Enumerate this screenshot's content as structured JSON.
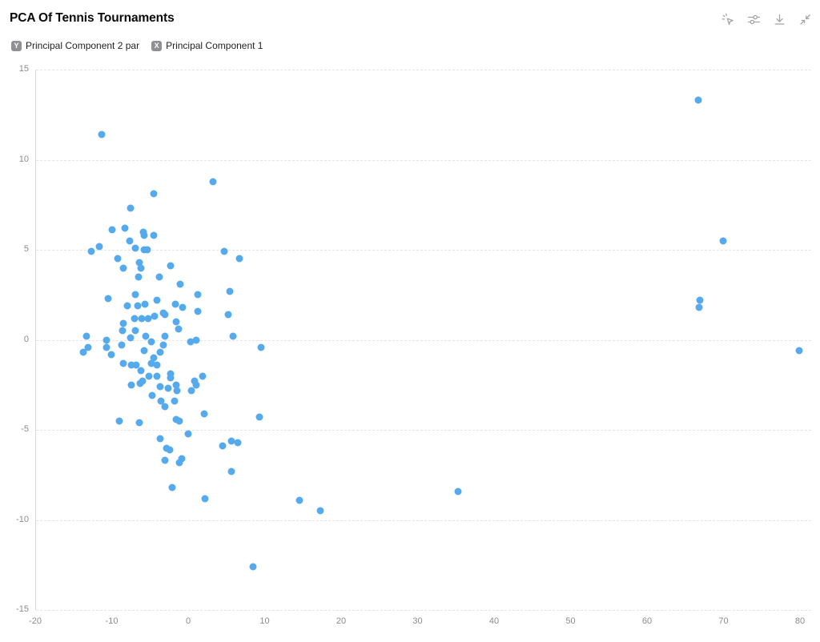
{
  "header": {
    "title": "PCA Of Tennis Tournaments"
  },
  "toolbar": {
    "icons": [
      {
        "name": "pointer-spark-icon"
      },
      {
        "name": "sliders-icon"
      },
      {
        "name": "download-icon"
      },
      {
        "name": "collapse-icon"
      }
    ]
  },
  "legend": {
    "y": {
      "badge": "Y",
      "label": "Principal Component 2 par"
    },
    "x": {
      "badge": "X",
      "label": "Principal Component 1"
    }
  },
  "colors": {
    "point": "#55a9ed",
    "grid": "#e4e4e6",
    "axis_line": "#d9d9db",
    "tick_text": "#8b8b90",
    "badge_bg": "#8f8f94"
  },
  "chart_data": {
    "type": "scatter",
    "title": "PCA Of Tennis Tournaments",
    "xlabel": "Principal Component 1",
    "ylabel": "Principal Component 2 par",
    "xlim": [
      -20,
      80
    ],
    "ylim": [
      -15,
      15
    ],
    "x_ticks": [
      -20,
      -10,
      0,
      10,
      20,
      30,
      40,
      50,
      60,
      70,
      80
    ],
    "y_ticks": [
      15,
      10,
      5,
      0,
      -5,
      -10,
      -15
    ],
    "grid": "horizontal-dashed",
    "legend_position": "none",
    "points": [
      [
        -11.4,
        11.4
      ],
      [
        3.1,
        8.8
      ],
      [
        -4.6,
        8.1
      ],
      [
        66.6,
        13.3
      ],
      [
        69.8,
        5.5
      ],
      [
        66.8,
        2.2
      ],
      [
        66.7,
        1.8
      ],
      [
        79.8,
        -0.6
      ],
      [
        35.2,
        -8.4
      ],
      [
        14.4,
        -8.9
      ],
      [
        17.2,
        -9.5
      ],
      [
        8.4,
        -12.6
      ],
      [
        9.4,
        -0.4
      ],
      [
        9.2,
        -4.3
      ],
      [
        -7.6,
        7.3
      ],
      [
        -10.1,
        6.1
      ],
      [
        -8.4,
        6.2
      ],
      [
        -6.0,
        6.0
      ],
      [
        -5.9,
        5.8
      ],
      [
        -4.6,
        5.8
      ],
      [
        -7.8,
        5.5
      ],
      [
        -11.7,
        5.2
      ],
      [
        -12.8,
        4.9
      ],
      [
        -7.0,
        5.1
      ],
      [
        -5.9,
        5.0
      ],
      [
        -5.4,
        5.0
      ],
      [
        -9.3,
        4.5
      ],
      [
        -8.6,
        4.0
      ],
      [
        -6.5,
        4.3
      ],
      [
        -6.3,
        4.0
      ],
      [
        -2.4,
        4.1
      ],
      [
        4.6,
        4.9
      ],
      [
        6.6,
        4.5
      ],
      [
        5.3,
        2.7
      ],
      [
        -6.6,
        3.5
      ],
      [
        -3.9,
        3.5
      ],
      [
        -1.2,
        3.1
      ],
      [
        -10.6,
        2.3
      ],
      [
        -7.0,
        2.5
      ],
      [
        -4.2,
        2.2
      ],
      [
        -8.1,
        1.9
      ],
      [
        -6.7,
        1.9
      ],
      [
        -5.8,
        2.0
      ],
      [
        -1.8,
        2.0
      ],
      [
        -0.8,
        1.8
      ],
      [
        1.2,
        2.5
      ],
      [
        1.2,
        1.6
      ],
      [
        -3.4,
        1.5
      ],
      [
        -3.1,
        1.4
      ],
      [
        -7.1,
        1.2
      ],
      [
        -6.2,
        1.2
      ],
      [
        -5.3,
        1.2
      ],
      [
        -4.5,
        1.3
      ],
      [
        -8.6,
        0.9
      ],
      [
        -1.7,
        1.0
      ],
      [
        -1.4,
        0.6
      ],
      [
        -8.7,
        0.5
      ],
      [
        -7.0,
        0.5
      ],
      [
        -7.6,
        0.1
      ],
      [
        -5.7,
        0.2
      ],
      [
        -3.1,
        0.2
      ],
      [
        -4.9,
        -0.1
      ],
      [
        -3.4,
        -0.3
      ],
      [
        -8.8,
        -0.3
      ],
      [
        -5.9,
        -0.6
      ],
      [
        0.2,
        -0.1
      ],
      [
        0.9,
        0.0
      ],
      [
        -3.8,
        -0.7
      ],
      [
        -4.6,
        -1.0
      ],
      [
        5.1,
        1.4
      ],
      [
        5.8,
        0.2
      ],
      [
        -13.4,
        0.2
      ],
      [
        -13.2,
        -0.4
      ],
      [
        -10.8,
        0.0
      ],
      [
        -10.8,
        -0.4
      ],
      [
        -13.8,
        -0.7
      ],
      [
        -10.2,
        -0.8
      ],
      [
        -8.6,
        -1.3
      ],
      [
        -7.5,
        -1.4
      ],
      [
        -6.9,
        -1.4
      ],
      [
        -6.3,
        -1.7
      ],
      [
        -4.9,
        -1.3
      ],
      [
        -4.2,
        -1.4
      ],
      [
        -5.2,
        -2.0
      ],
      [
        -4.2,
        -2.0
      ],
      [
        -2.4,
        -1.9
      ],
      [
        -2.4,
        -2.1
      ],
      [
        -7.5,
        -2.5
      ],
      [
        -6.4,
        -2.4
      ],
      [
        -6.1,
        -2.3
      ],
      [
        -3.8,
        -2.6
      ],
      [
        -2.7,
        -2.7
      ],
      [
        -1.7,
        -2.5
      ],
      [
        -1.6,
        -2.8
      ],
      [
        -4.8,
        -3.1
      ],
      [
        -3.7,
        -3.4
      ],
      [
        -3.1,
        -3.7
      ],
      [
        -1.9,
        -3.4
      ],
      [
        0.7,
        -2.3
      ],
      [
        0.9,
        -2.5
      ],
      [
        1.8,
        -2.0
      ],
      [
        0.3,
        -2.8
      ],
      [
        2.0,
        -4.1
      ],
      [
        -1.7,
        -4.4
      ],
      [
        -1.3,
        -4.5
      ],
      [
        -9.1,
        -4.5
      ],
      [
        -6.5,
        -4.6
      ],
      [
        -0.1,
        -5.2
      ],
      [
        -3.8,
        -5.5
      ],
      [
        -2.9,
        -6.0
      ],
      [
        -2.5,
        -6.1
      ],
      [
        4.4,
        -5.9
      ],
      [
        5.6,
        -5.6
      ],
      [
        6.4,
        -5.7
      ],
      [
        -3.1,
        -6.7
      ],
      [
        -0.9,
        -6.6
      ],
      [
        -1.3,
        -6.8
      ],
      [
        5.5,
        -7.3
      ],
      [
        -2.2,
        -8.2
      ],
      [
        2.1,
        -8.8
      ]
    ]
  }
}
